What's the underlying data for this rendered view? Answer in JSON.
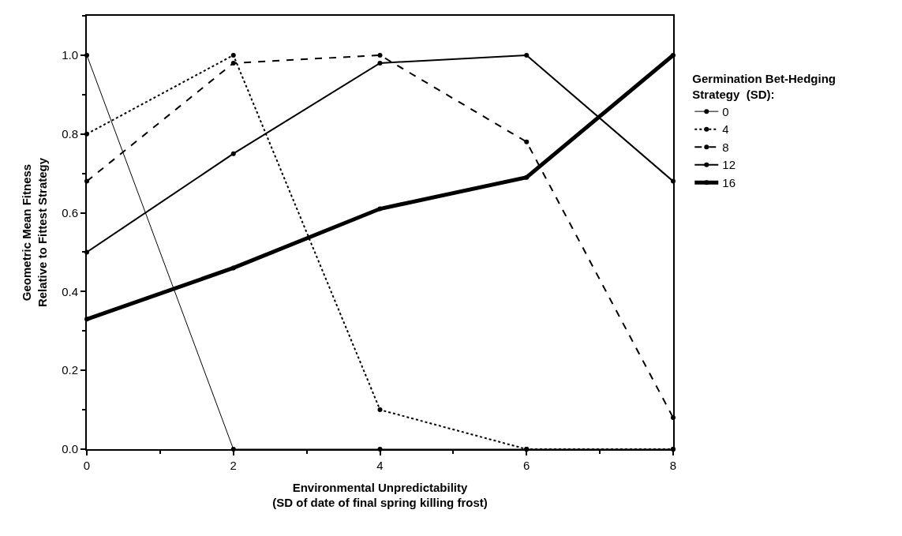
{
  "chart_data": {
    "type": "line",
    "xlabel": "Environmental Unpredictability\n(SD of date of final spring killing frost)",
    "ylabel": "Geometric Mean Fitness\nRelative to Fittest Strategy",
    "legend_title": "Germination Bet-Hedging\nStrategy  (SD):",
    "x": [
      0,
      2,
      4,
      6,
      8
    ],
    "xlim": [
      0,
      8
    ],
    "xticks": [
      0,
      2,
      4,
      6,
      8
    ],
    "ylim": [
      0,
      1.1
    ],
    "yticks": [
      {
        "value": 0,
        "label": "0.0"
      },
      0.2,
      0.4,
      0.6,
      0.8,
      {
        "value": 1,
        "label": "1.0"
      }
    ],
    "marker": "circle",
    "legend": "right",
    "series": [
      {
        "name": "0",
        "color": "#000000",
        "line_style": "solid",
        "values": [
          1.0,
          0.0,
          0.0,
          0.0,
          0.0
        ]
      },
      {
        "name": "4",
        "color": "#000000",
        "line_style": "dotted",
        "values": [
          0.8,
          1.0,
          0.1,
          0.0,
          0.0
        ]
      },
      {
        "name": "8",
        "color": "#000000",
        "line_style": "dashed",
        "values": [
          0.68,
          0.98,
          1.0,
          0.78,
          0.08
        ]
      },
      {
        "name": "12",
        "color": "#000000",
        "line_style": "solid",
        "values": [
          0.5,
          0.75,
          0.98,
          1.0,
          0.68
        ]
      },
      {
        "name": "16",
        "color": "#000000",
        "line_style": "solid",
        "values": [
          0.33,
          0.46,
          0.61,
          0.69,
          1.0
        ]
      }
    ]
  }
}
